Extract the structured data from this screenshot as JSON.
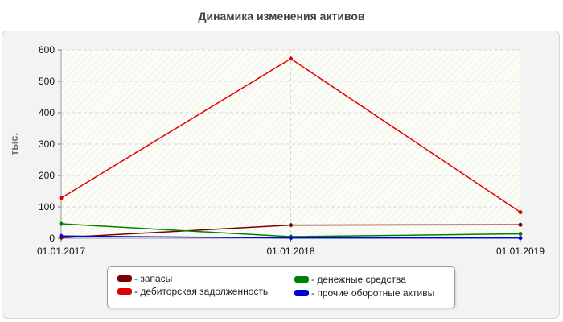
{
  "chart_data": {
    "type": "line",
    "title": "Динамика изменения активов",
    "ylabel": "тыс.",
    "xlabel": "",
    "categories": [
      "01.01.2017",
      "01.01.2018",
      "01.01.2019"
    ],
    "ylim": [
      0,
      600
    ],
    "yticks": [
      0,
      100,
      200,
      300,
      400,
      500,
      600
    ],
    "grid": true,
    "legend": "bottom",
    "series": [
      {
        "name": "запасы",
        "color": "#7a0000",
        "values": [
          2,
          42,
          43
        ]
      },
      {
        "name": "дебиторская задолженность",
        "color": "#e00000",
        "values": [
          128,
          572,
          83
        ]
      },
      {
        "name": "денежные средства",
        "color": "#008000",
        "values": [
          46,
          5,
          14
        ]
      },
      {
        "name": "прочие оборотные активы",
        "color": "#0000dd",
        "values": [
          7,
          1,
          1
        ]
      }
    ]
  }
}
